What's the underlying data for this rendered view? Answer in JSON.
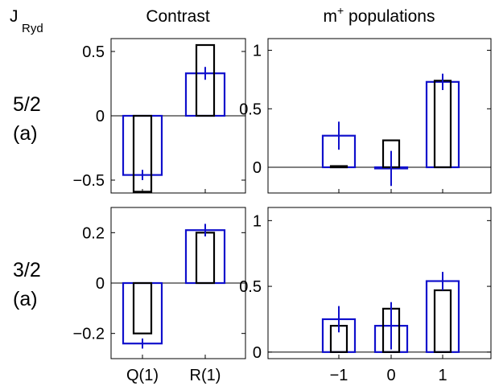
{
  "figure": {
    "row_header": "J",
    "row_header_sub": "Ryd",
    "col_titles": {
      "contrast": "Contrast",
      "populations_main": "m",
      "populations_sup": "+",
      "populations_rest": " populations"
    },
    "row_labels": [
      {
        "value": "5/2",
        "tag": "(a)"
      },
      {
        "value": "3/2",
        "tag": "(a)"
      }
    ]
  },
  "colors": {
    "blue": "#1010cc",
    "black": "#000000"
  },
  "chart_data": [
    {
      "type": "bar",
      "title": "Contrast",
      "row": "5/2 (a)",
      "categories": [
        "Q(1)",
        "R(1)"
      ],
      "ylim": [
        -0.6,
        0.6
      ],
      "yticks": [
        -0.5,
        0,
        0.5
      ],
      "ytick_labels": [
        "−0.5",
        "0",
        "0.5"
      ],
      "show_x_ticks": false,
      "series": [
        {
          "values": [
            -0.46,
            0.33
          ],
          "errors": [
            0.04,
            0.05
          ],
          "color": "blue"
        },
        {
          "values": [
            -0.59,
            0.55
          ],
          "color": "black"
        }
      ]
    },
    {
      "type": "bar",
      "title": "m+ populations",
      "row": "5/2 (a)",
      "categories": [
        "−1",
        "0",
        "1"
      ],
      "ylim": [
        -0.22,
        1.1
      ],
      "yticks": [
        0,
        0.5,
        1
      ],
      "ytick_labels": [
        "0",
        "0.5",
        "1"
      ],
      "show_x_ticks": false,
      "series": [
        {
          "values": [
            0.27,
            -0.01,
            0.73
          ],
          "errors": [
            0.12,
            0.15,
            0.07
          ],
          "color": "blue"
        },
        {
          "values": [
            0.01,
            0.23,
            0.74
          ],
          "color": "black"
        }
      ]
    },
    {
      "type": "bar",
      "title": "Contrast",
      "row": "3/2 (a)",
      "categories": [
        "Q(1)",
        "R(1)"
      ],
      "ylim": [
        -0.3,
        0.3
      ],
      "yticks": [
        -0.2,
        0,
        0.2
      ],
      "ytick_labels": [
        "−0.2",
        "0",
        "0.2"
      ],
      "show_x_ticks": true,
      "series": [
        {
          "values": [
            -0.24,
            0.21
          ],
          "errors": [
            0.02,
            0.025
          ],
          "color": "blue"
        },
        {
          "values": [
            -0.2,
            0.2
          ],
          "color": "black"
        }
      ]
    },
    {
      "type": "bar",
      "title": "m+ populations",
      "row": "3/2 (a)",
      "categories": [
        "−1",
        "0",
        "1"
      ],
      "ylim": [
        -0.05,
        1.1
      ],
      "yticks": [
        0,
        0.5,
        1
      ],
      "ytick_labels": [
        "0",
        "0.5",
        "1"
      ],
      "show_x_ticks": true,
      "series": [
        {
          "values": [
            0.25,
            0.2,
            0.54
          ],
          "errors": [
            0.1,
            0.18,
            0.07
          ],
          "color": "blue"
        },
        {
          "values": [
            0.2,
            0.33,
            0.47
          ],
          "color": "black"
        }
      ]
    }
  ]
}
